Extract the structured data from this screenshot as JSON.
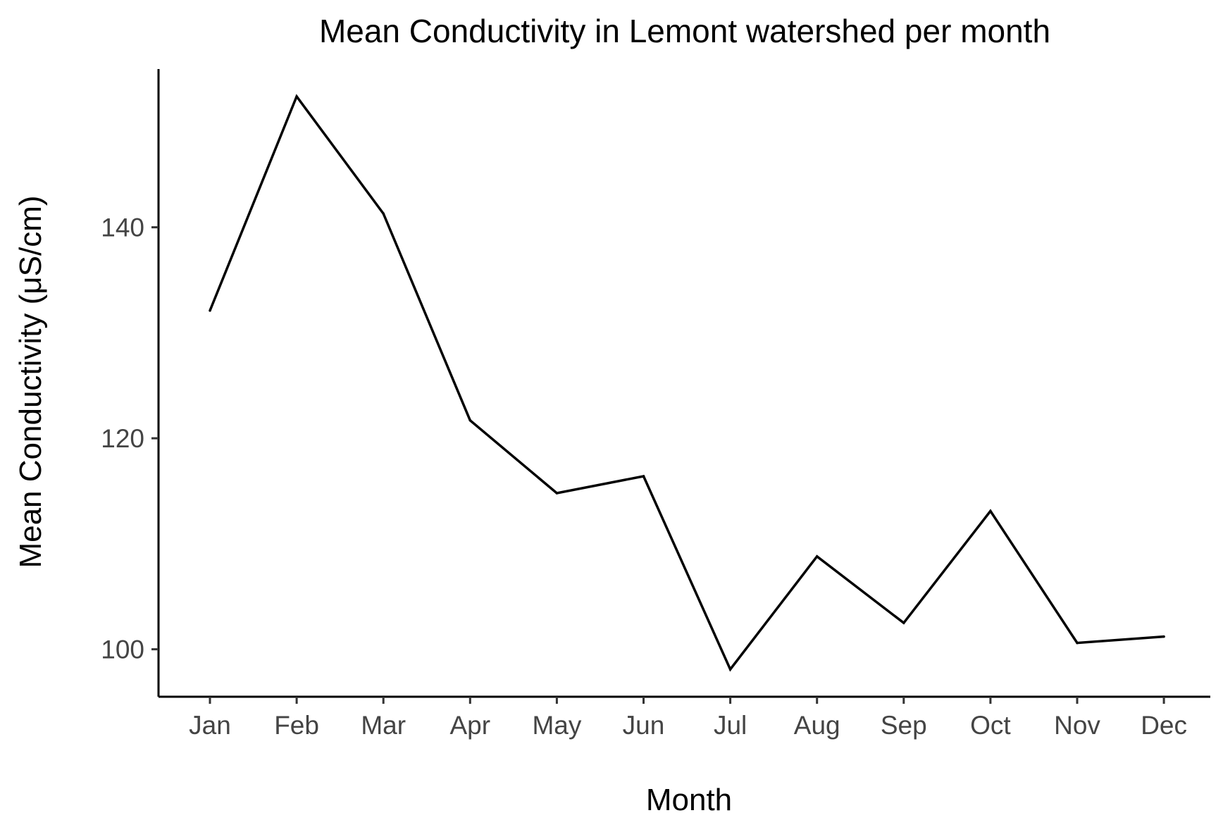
{
  "chart_data": {
    "type": "line",
    "title": "Mean Conductivity in Lemont watershed per month",
    "xlabel": "Month",
    "ylabel": "Mean Conductivity (μS/cm)",
    "categories": [
      "Jan",
      "Feb",
      "Mar",
      "Apr",
      "May",
      "Jun",
      "Jul",
      "Aug",
      "Sep",
      "Oct",
      "Nov",
      "Dec"
    ],
    "series": [
      {
        "values": [
          132.1,
          152.4,
          141.3,
          121.7,
          114.8,
          116.4,
          98.1,
          108.8,
          102.5,
          113.1,
          100.6,
          101.2
        ]
      }
    ],
    "yticks": [
      100,
      120,
      140
    ],
    "ylim": [
      95.5,
      155.0
    ],
    "grid": false,
    "line_color": "#000000"
  }
}
